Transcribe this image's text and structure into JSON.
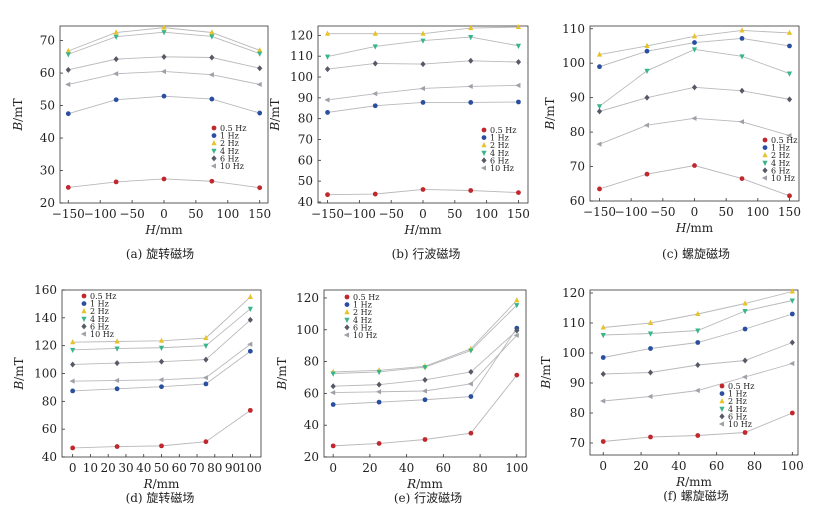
{
  "chart_data": [
    {
      "type": "line",
      "caption": "(a) 旋转磁场",
      "xlabel_var": "H",
      "xlabel_unit": "/mm",
      "ylabel_var": "B",
      "ylabel_unit": "/mT",
      "x": [
        -150,
        -75,
        0,
        75,
        150
      ],
      "xticks": [
        "−150",
        "−100",
        "−50",
        "0",
        "50",
        "100",
        "150"
      ],
      "xtick_values": [
        -150,
        -100,
        -50,
        0,
        50,
        100,
        150
      ],
      "xlim": [
        -163,
        163
      ],
      "yticks": [
        "20",
        "30",
        "40",
        "50",
        "60",
        "70"
      ],
      "ylim": [
        20,
        74.5
      ],
      "legend_pos": "right-middle",
      "series": [
        {
          "name": "0.5 Hz",
          "color": "#c0282d",
          "marker": "circle",
          "values": [
            24.8,
            26.5,
            27.4,
            26.7,
            24.7
          ]
        },
        {
          "name": "1 Hz",
          "color": "#2b4fa0",
          "marker": "circle",
          "values": [
            47.5,
            51.8,
            52.9,
            52.0,
            47.7
          ]
        },
        {
          "name": "2 Hz",
          "color": "#e8c229",
          "marker": "tri-up",
          "values": [
            66.8,
            72.5,
            74.0,
            72.5,
            67.0
          ]
        },
        {
          "name": "4 Hz",
          "color": "#38b58a",
          "marker": "tri-down",
          "values": [
            65.8,
            71.2,
            72.6,
            71.3,
            66.0
          ]
        },
        {
          "name": "6 Hz",
          "color": "#565966",
          "marker": "diamond",
          "values": [
            61.0,
            64.3,
            65.0,
            64.8,
            61.5
          ]
        },
        {
          "name": "10 Hz",
          "color": "#9ea2a8",
          "marker": "tri-left",
          "values": [
            56.5,
            59.8,
            60.5,
            59.5,
            56.5
          ]
        }
      ]
    },
    {
      "type": "line",
      "caption": "(b) 行波磁场",
      "xlabel_var": "H",
      "xlabel_unit": "/mm",
      "ylabel_var": "B",
      "ylabel_unit": "/mT",
      "x": [
        -150,
        -75,
        0,
        75,
        150
      ],
      "xticks": [
        "−150",
        "−100",
        "−50",
        "0",
        "50",
        "100",
        "150"
      ],
      "xtick_values": [
        -150,
        -100,
        -50,
        0,
        50,
        100,
        150
      ],
      "xlim": [
        -165,
        165
      ],
      "yticks": [
        "40",
        "50",
        "60",
        "70",
        "80",
        "90",
        "100",
        "110",
        "120"
      ],
      "ylim": [
        39.5,
        124.5
      ],
      "legend_pos": "right-middle",
      "series": [
        {
          "name": "0.5 Hz",
          "color": "#c0282d",
          "marker": "circle",
          "values": [
            43.5,
            43.8,
            46.0,
            45.5,
            44.5
          ]
        },
        {
          "name": "1 Hz",
          "color": "#2b4fa0",
          "marker": "circle",
          "values": [
            83.0,
            86.2,
            87.8,
            87.8,
            88.0
          ]
        },
        {
          "name": "2 Hz",
          "color": "#e8c229",
          "marker": "tri-up",
          "values": [
            120.8,
            120.8,
            120.8,
            123.5,
            124.0
          ]
        },
        {
          "name": "4 Hz",
          "color": "#38b58a",
          "marker": "tri-down",
          "values": [
            109.8,
            114.7,
            117.5,
            119.2,
            115.0
          ]
        },
        {
          "name": "6 Hz",
          "color": "#565966",
          "marker": "diamond",
          "values": [
            103.8,
            106.5,
            106.2,
            107.8,
            107.2
          ]
        },
        {
          "name": "10 Hz",
          "color": "#9ea2a8",
          "marker": "tri-left",
          "values": [
            89.0,
            92.0,
            94.5,
            95.5,
            96.0
          ]
        }
      ]
    },
    {
      "type": "line",
      "caption": "(c) 螺旋磁场",
      "xlabel_var": "H",
      "xlabel_unit": "/mm",
      "ylabel_var": "B",
      "ylabel_unit": "/mT",
      "x": [
        -150,
        -75,
        0,
        75,
        150
      ],
      "xticks": [
        "−150",
        "−100",
        "−50",
        "0",
        "50",
        "100",
        "150"
      ],
      "xtick_values": [
        -150,
        -100,
        -50,
        0,
        50,
        100,
        150
      ],
      "xlim": [
        -165,
        165
      ],
      "yticks": [
        "60",
        "70",
        "80",
        "90",
        "100",
        "110"
      ],
      "ylim": [
        60,
        110.8
      ],
      "legend_pos": "bottom-right",
      "series": [
        {
          "name": "0.5 Hz",
          "color": "#c0282d",
          "marker": "circle",
          "values": [
            63.5,
            67.8,
            70.3,
            66.5,
            61.5
          ]
        },
        {
          "name": "1 Hz",
          "color": "#2b4fa0",
          "marker": "circle",
          "values": [
            99.0,
            103.5,
            106.0,
            107.2,
            105.0
          ]
        },
        {
          "name": "2 Hz",
          "color": "#e8c229",
          "marker": "tri-up",
          "values": [
            102.5,
            105.0,
            107.8,
            109.5,
            108.8
          ]
        },
        {
          "name": "4 Hz",
          "color": "#38b58a",
          "marker": "tri-down",
          "values": [
            87.5,
            97.8,
            104.0,
            102.0,
            97.0
          ]
        },
        {
          "name": "6 Hz",
          "color": "#565966",
          "marker": "diamond",
          "values": [
            86.0,
            90.0,
            93.0,
            92.0,
            89.5
          ]
        },
        {
          "name": "10 Hz",
          "color": "#9ea2a8",
          "marker": "tri-left",
          "values": [
            76.5,
            82.0,
            84.0,
            83.0,
            79.0
          ]
        }
      ]
    },
    {
      "type": "line",
      "caption": "(d) 旋转磁场",
      "xlabel_var": "R",
      "xlabel_unit": "/mm",
      "ylabel_var": "B",
      "ylabel_unit": "/mT",
      "x": [
        0,
        25,
        50,
        75,
        100
      ],
      "xticks": [
        "0",
        "10",
        "20",
        "30",
        "40",
        "50",
        "60",
        "70",
        "80",
        "90",
        "100"
      ],
      "xtick_values": [
        0,
        10,
        20,
        30,
        40,
        50,
        60,
        70,
        80,
        90,
        100
      ],
      "xlim": [
        -6,
        106
      ],
      "yticks": [
        "40",
        "60",
        "80",
        "100",
        "120",
        "140",
        "160"
      ],
      "ylim": [
        40,
        160
      ],
      "legend_pos": "top-left",
      "series": [
        {
          "name": "0.5 Hz",
          "color": "#c0282d",
          "marker": "circle",
          "values": [
            46.5,
            47.5,
            48.0,
            51.0,
            73.5
          ]
        },
        {
          "name": "1 Hz",
          "color": "#2b4fa0",
          "marker": "circle",
          "values": [
            87.5,
            89.0,
            90.5,
            92.5,
            116.0
          ]
        },
        {
          "name": "2 Hz",
          "color": "#e8c229",
          "marker": "tri-up",
          "values": [
            122.5,
            123.0,
            123.5,
            125.5,
            155.0
          ]
        },
        {
          "name": "4 Hz",
          "color": "#38b58a",
          "marker": "tri-down",
          "values": [
            117.0,
            118.0,
            118.5,
            120.0,
            146.5
          ]
        },
        {
          "name": "6 Hz",
          "color": "#565966",
          "marker": "diamond",
          "values": [
            106.5,
            107.5,
            108.5,
            110.0,
            138.5
          ]
        },
        {
          "name": "10 Hz",
          "color": "#9ea2a8",
          "marker": "tri-left",
          "values": [
            94.5,
            95.0,
            95.5,
            97.0,
            121.0
          ]
        }
      ]
    },
    {
      "type": "line",
      "caption": "(e) 行波磁场",
      "xlabel_var": "R",
      "xlabel_unit": "/mm",
      "ylabel_var": "B",
      "ylabel_unit": "/mT",
      "x": [
        0,
        25,
        50,
        75,
        100
      ],
      "xticks": [
        "0",
        "20",
        "40",
        "60",
        "80",
        "100"
      ],
      "xtick_values": [
        0,
        20,
        40,
        60,
        80,
        100
      ],
      "xlim": [
        -5,
        105
      ],
      "yticks": [
        "20",
        "40",
        "60",
        "80",
        "100",
        "120"
      ],
      "ylim": [
        20,
        125
      ],
      "legend_pos": "top-left",
      "series": [
        {
          "name": "0.5 Hz",
          "color": "#c0282d",
          "marker": "circle",
          "values": [
            27.0,
            28.5,
            31.0,
            35.0,
            71.5
          ]
        },
        {
          "name": "1 Hz",
          "color": "#2b4fa0",
          "marker": "circle",
          "values": [
            53.0,
            54.5,
            56.0,
            58.0,
            101.0
          ]
        },
        {
          "name": "2 Hz",
          "color": "#e8c229",
          "marker": "tri-up",
          "values": [
            73.5,
            74.5,
            77.0,
            88.0,
            118.5
          ]
        },
        {
          "name": "4 Hz",
          "color": "#38b58a",
          "marker": "tri-down",
          "values": [
            72.5,
            73.5,
            76.5,
            87.0,
            115.5
          ]
        },
        {
          "name": "6 Hz",
          "color": "#565966",
          "marker": "diamond",
          "values": [
            64.5,
            65.5,
            68.5,
            73.5,
            99.5
          ]
        },
        {
          "name": "10 Hz",
          "color": "#9ea2a8",
          "marker": "tri-left",
          "values": [
            60.5,
            61.0,
            61.5,
            66.0,
            96.5
          ]
        }
      ]
    },
    {
      "type": "line",
      "caption": "(f) 螺旋磁场",
      "xlabel_var": "R",
      "xlabel_unit": "/mm",
      "ylabel_var": "B",
      "ylabel_unit": "/mT",
      "x": [
        0,
        25,
        50,
        75,
        100
      ],
      "xticks": [
        "0",
        "20",
        "40",
        "60",
        "80",
        "100"
      ],
      "xtick_values": [
        0,
        20,
        40,
        60,
        80,
        100
      ],
      "xlim": [
        -7,
        103
      ],
      "yticks": [
        "70",
        "80",
        "90",
        "100",
        "110",
        "120"
      ],
      "ylim": [
        66,
        121
      ],
      "legend_pos": "bottom-center",
      "series": [
        {
          "name": "0.5 Hz",
          "color": "#c0282d",
          "marker": "circle",
          "values": [
            70.5,
            72.0,
            72.5,
            73.5,
            80.0
          ]
        },
        {
          "name": "1 Hz",
          "color": "#2b4fa0",
          "marker": "circle",
          "values": [
            98.5,
            101.5,
            103.5,
            108.0,
            113.0
          ]
        },
        {
          "name": "2 Hz",
          "color": "#e8c229",
          "marker": "tri-up",
          "values": [
            108.5,
            110.0,
            113.0,
            116.5,
            120.5
          ]
        },
        {
          "name": "4 Hz",
          "color": "#38b58a",
          "marker": "tri-down",
          "values": [
            106.0,
            106.5,
            107.5,
            114.0,
            117.5
          ]
        },
        {
          "name": "6 Hz",
          "color": "#565966",
          "marker": "diamond",
          "values": [
            93.0,
            93.5,
            96.0,
            97.5,
            103.5
          ]
        },
        {
          "name": "10 Hz",
          "color": "#9ea2a8",
          "marker": "tri-left",
          "values": [
            84.0,
            85.5,
            87.5,
            92.0,
            96.5
          ]
        }
      ]
    }
  ]
}
